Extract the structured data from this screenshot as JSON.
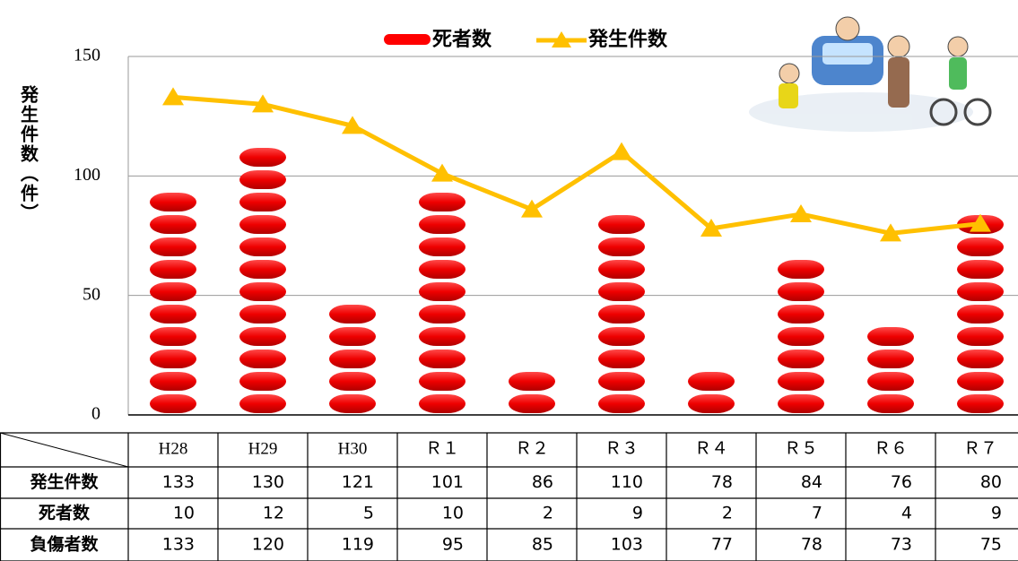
{
  "chart_data": {
    "type": "pictograph-line",
    "y_label": "発生件数（件）",
    "categories": [
      "H28",
      "H29",
      "H30",
      "Ｒ１",
      "Ｒ２",
      "Ｒ３",
      "Ｒ４",
      "Ｒ５",
      "Ｒ６",
      "Ｒ７"
    ],
    "series": [
      {
        "name": "死者数",
        "color": "#ff0000",
        "values": [
          10,
          12,
          5,
          10,
          2,
          9,
          2,
          7,
          4,
          9
        ]
      },
      {
        "name": "発生件数",
        "color": "#ffc000",
        "values": [
          133,
          130,
          121,
          101,
          86,
          110,
          78,
          84,
          76,
          80
        ]
      }
    ],
    "ylim": [
      0,
      150
    ],
    "yticks": [
      0,
      50,
      100,
      150
    ],
    "grid": true,
    "legend": "top",
    "table_extra_rows": [
      {
        "name": "負傷者数",
        "values": [
          133,
          120,
          119,
          95,
          85,
          103,
          77,
          78,
          73,
          75
        ]
      }
    ]
  }
}
